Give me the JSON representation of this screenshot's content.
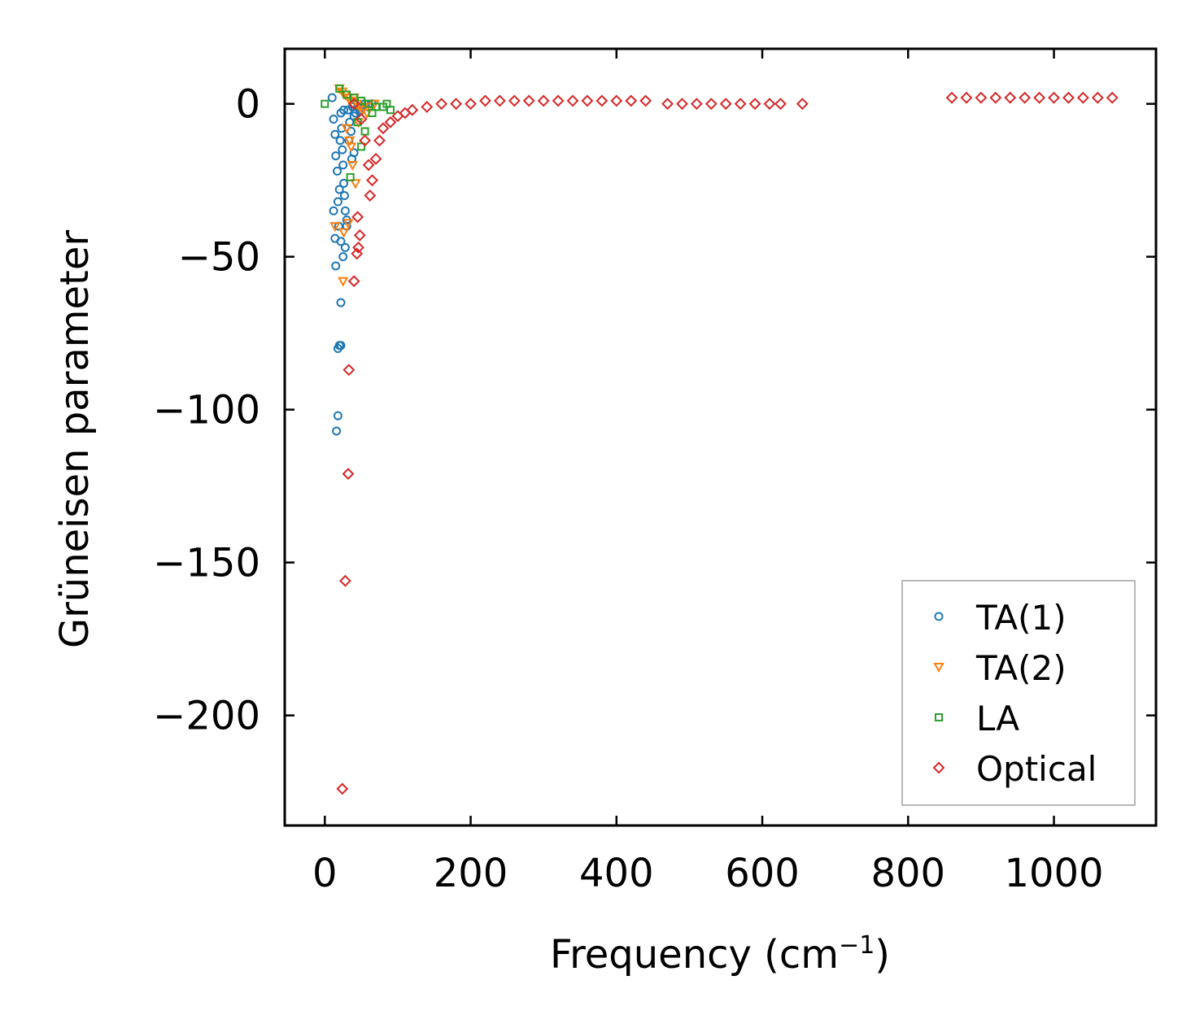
{
  "chart_data": {
    "type": "scatter",
    "title": "",
    "xlabel": "Frequency (cm",
    "xlabel_unit_exponent": "−1",
    "xlabel_close": ")",
    "ylabel": "Grüneisen parameter",
    "xlim": [
      -55,
      1140
    ],
    "ylim": [
      -236,
      18
    ],
    "xticks": [
      0,
      200,
      400,
      600,
      800,
      1000
    ],
    "xtick_labels": [
      "0",
      "200",
      "400",
      "600",
      "800",
      "1000"
    ],
    "yticks": [
      0,
      -50,
      -100,
      -150,
      -200
    ],
    "ytick_labels": [
      "0",
      "−50",
      "−100",
      "−150",
      "−200"
    ],
    "grid": false,
    "legend_position": "lower-right",
    "series": [
      {
        "name": "TA(1)",
        "marker": "circle",
        "color": "#1f77b4",
        "points": [
          [
            10,
            2
          ],
          [
            12,
            -5
          ],
          [
            14,
            -10
          ],
          [
            15,
            -17
          ],
          [
            17,
            -22
          ],
          [
            18,
            -32
          ],
          [
            19,
            -40
          ],
          [
            20,
            -28
          ],
          [
            21,
            -12
          ],
          [
            22,
            -45
          ],
          [
            22,
            -3
          ],
          [
            23,
            -8
          ],
          [
            24,
            -15
          ],
          [
            25,
            -20
          ],
          [
            26,
            -26
          ],
          [
            27,
            -30
          ],
          [
            28,
            -35
          ],
          [
            30,
            -38
          ],
          [
            32,
            -2
          ],
          [
            34,
            -6
          ],
          [
            36,
            -9
          ],
          [
            38,
            -1
          ],
          [
            40,
            -4
          ],
          [
            42,
            -3
          ],
          [
            45,
            -1
          ],
          [
            48,
            -2
          ],
          [
            50,
            -1
          ],
          [
            55,
            0
          ],
          [
            60,
            -1
          ],
          [
            65,
            0
          ],
          [
            15,
            -53
          ],
          [
            22,
            -65
          ],
          [
            20,
            -79
          ],
          [
            18,
            -80
          ],
          [
            22,
            -79
          ],
          [
            18,
            -102
          ],
          [
            16,
            -107
          ],
          [
            25,
            -50
          ],
          [
            28,
            -47
          ],
          [
            30,
            -40
          ],
          [
            12,
            -35
          ],
          [
            14,
            -44
          ],
          [
            26,
            -2
          ],
          [
            33,
            -12
          ],
          [
            37,
            -18
          ],
          [
            40,
            -16
          ]
        ]
      },
      {
        "name": "TA(2)",
        "marker": "triangle-down",
        "color": "#ff7f0e",
        "points": [
          [
            20,
            5
          ],
          [
            24,
            4
          ],
          [
            28,
            3
          ],
          [
            32,
            2
          ],
          [
            35,
            1
          ],
          [
            40,
            2
          ],
          [
            44,
            0
          ],
          [
            48,
            -1
          ],
          [
            52,
            -2
          ],
          [
            58,
            -3
          ],
          [
            62,
            -1
          ],
          [
            68,
            0
          ],
          [
            30,
            -8
          ],
          [
            34,
            -12
          ],
          [
            38,
            -20
          ],
          [
            42,
            -26
          ],
          [
            26,
            -42
          ],
          [
            25,
            -58
          ],
          [
            32,
            -39
          ],
          [
            14,
            -40
          ],
          [
            36,
            -14
          ],
          [
            46,
            -6
          ]
        ]
      },
      {
        "name": "LA",
        "marker": "square",
        "color": "#2ca02c",
        "points": [
          [
            0,
            0
          ],
          [
            20,
            5
          ],
          [
            30,
            3
          ],
          [
            40,
            2
          ],
          [
            50,
            1
          ],
          [
            60,
            0
          ],
          [
            70,
            -1
          ],
          [
            80,
            -1
          ],
          [
            85,
            0
          ],
          [
            90,
            -2
          ],
          [
            45,
            -6
          ],
          [
            55,
            -9
          ],
          [
            35,
            -24
          ],
          [
            50,
            -14
          ],
          [
            65,
            -3
          ]
        ]
      },
      {
        "name": "Optical",
        "marker": "diamond",
        "color": "#d62728",
        "points": [
          [
            40,
            0
          ],
          [
            50,
            -5
          ],
          [
            55,
            -12
          ],
          [
            60,
            -20
          ],
          [
            62,
            -30
          ],
          [
            65,
            -25
          ],
          [
            70,
            -18
          ],
          [
            75,
            -12
          ],
          [
            80,
            -8
          ],
          [
            90,
            -6
          ],
          [
            100,
            -4
          ],
          [
            110,
            -3
          ],
          [
            120,
            -2
          ],
          [
            140,
            -1
          ],
          [
            160,
            0
          ],
          [
            180,
            0
          ],
          [
            200,
            0
          ],
          [
            220,
            1
          ],
          [
            240,
            1
          ],
          [
            260,
            1
          ],
          [
            280,
            1
          ],
          [
            300,
            1
          ],
          [
            320,
            1
          ],
          [
            340,
            1
          ],
          [
            360,
            1
          ],
          [
            380,
            1
          ],
          [
            400,
            1
          ],
          [
            420,
            1
          ],
          [
            440,
            1
          ],
          [
            470,
            0
          ],
          [
            490,
            0
          ],
          [
            510,
            0
          ],
          [
            530,
            0
          ],
          [
            550,
            0
          ],
          [
            570,
            0
          ],
          [
            590,
            0
          ],
          [
            610,
            0
          ],
          [
            625,
            0
          ],
          [
            655,
            0
          ],
          [
            860,
            2
          ],
          [
            880,
            2
          ],
          [
            900,
            2
          ],
          [
            920,
            2
          ],
          [
            940,
            2
          ],
          [
            960,
            2
          ],
          [
            980,
            2
          ],
          [
            1000,
            2
          ],
          [
            1020,
            2
          ],
          [
            1040,
            2
          ],
          [
            1060,
            2
          ],
          [
            1080,
            2
          ],
          [
            45,
            -37
          ],
          [
            48,
            -43
          ],
          [
            46,
            -47
          ],
          [
            44,
            -49
          ],
          [
            40,
            -58
          ],
          [
            33,
            -87
          ],
          [
            32,
            -121
          ],
          [
            28,
            -156
          ],
          [
            24,
            -224
          ]
        ]
      }
    ]
  }
}
